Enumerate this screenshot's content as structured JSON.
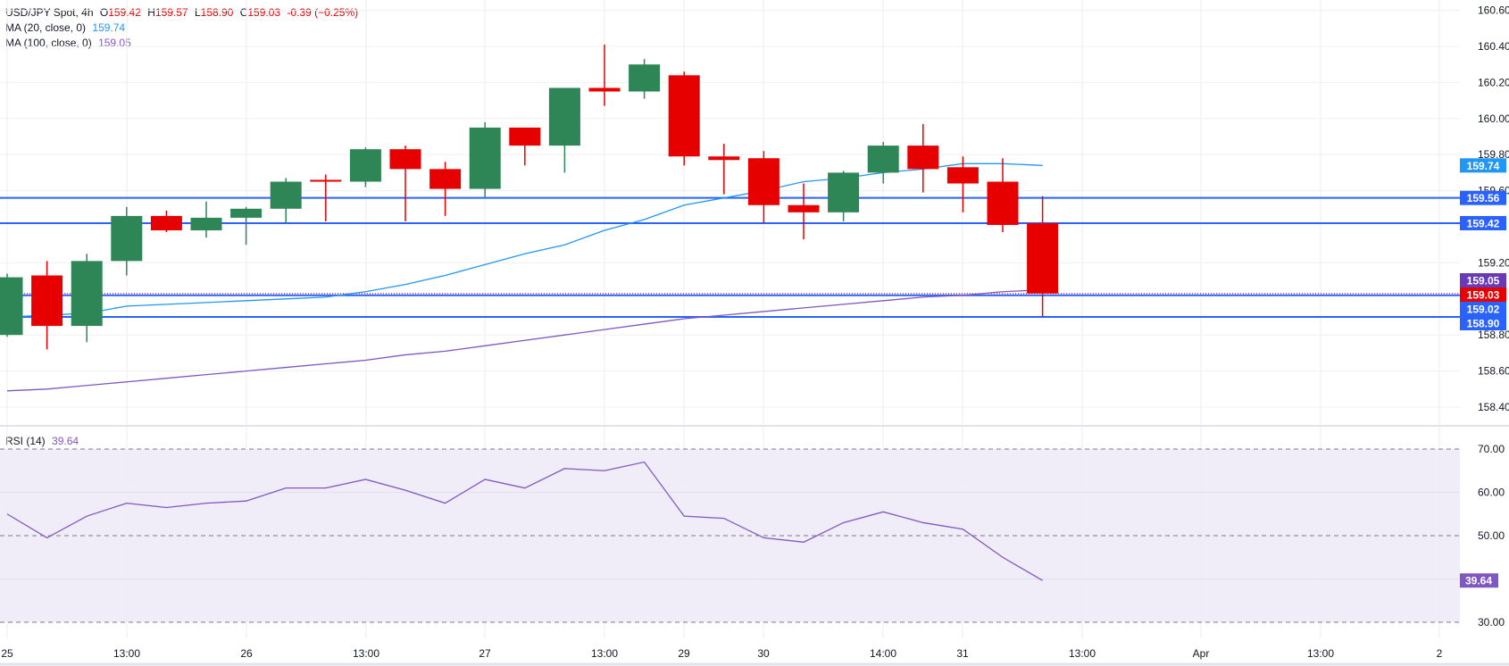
{
  "header": {
    "symbol": "USD/JPY Spot, 4h",
    "open_label": "O",
    "open": "159.42",
    "high_label": "H",
    "high": "159.57",
    "low_label": "L",
    "low": "158.90",
    "close_label": "C",
    "close": "159.03",
    "change": "-0.39 (−0.25%)"
  },
  "indicators": {
    "ma20": {
      "label": "MA (20, close, 0)",
      "value": "159.74",
      "color": "#2196f3"
    },
    "ma100": {
      "label": "MA (100, close, 0)",
      "value": "159.05",
      "color": "#7e57c2"
    },
    "rsi": {
      "label": "RSI (14)",
      "value": "39.64",
      "color": "#7e57c2"
    }
  },
  "colors": {
    "up": "#2e8555",
    "down": "#e60000",
    "level_line": "#2962ff",
    "rsi_band": "#f0ecf8"
  },
  "chart_data": [
    {
      "type": "candlestick",
      "title": "USD/JPY Spot, 4h",
      "ylim": [
        158.4,
        160.6
      ],
      "y_ticks": [
        "160.60",
        "160.40",
        "160.20",
        "160.00",
        "159.80",
        "159.60",
        "159.20",
        "158.80",
        "158.60",
        "158.40"
      ],
      "x_ticks": [
        "25",
        "13:00",
        "26",
        "13:00",
        "27",
        "13:00",
        "29",
        "30",
        "14:00",
        "31",
        "13:00",
        "Apr",
        "13:00",
        "2"
      ],
      "grid": true,
      "candles": [
        {
          "o": 158.8,
          "h": 159.14,
          "l": 158.79,
          "c": 159.12
        },
        {
          "o": 159.13,
          "h": 159.21,
          "l": 158.72,
          "c": 158.85
        },
        {
          "o": 158.85,
          "h": 159.25,
          "l": 158.76,
          "c": 159.21
        },
        {
          "o": 159.21,
          "h": 159.51,
          "l": 159.13,
          "c": 159.46
        },
        {
          "o": 159.46,
          "h": 159.49,
          "l": 159.37,
          "c": 159.38
        },
        {
          "o": 159.38,
          "h": 159.54,
          "l": 159.34,
          "c": 159.45
        },
        {
          "o": 159.45,
          "h": 159.51,
          "l": 159.3,
          "c": 159.5
        },
        {
          "o": 159.5,
          "h": 159.67,
          "l": 159.42,
          "c": 159.65
        },
        {
          "o": 159.66,
          "h": 159.69,
          "l": 159.43,
          "c": 159.65
        },
        {
          "o": 159.65,
          "h": 159.84,
          "l": 159.62,
          "c": 159.83
        },
        {
          "o": 159.83,
          "h": 159.85,
          "l": 159.43,
          "c": 159.72
        },
        {
          "o": 159.72,
          "h": 159.76,
          "l": 159.46,
          "c": 159.61
        },
        {
          "o": 159.61,
          "h": 159.98,
          "l": 159.56,
          "c": 159.95
        },
        {
          "o": 159.95,
          "h": 159.95,
          "l": 159.74,
          "c": 159.85
        },
        {
          "o": 159.85,
          "h": 160.17,
          "l": 159.7,
          "c": 160.17
        },
        {
          "o": 160.17,
          "h": 160.41,
          "l": 160.07,
          "c": 160.15
        },
        {
          "o": 160.15,
          "h": 160.33,
          "l": 160.11,
          "c": 160.3
        },
        {
          "o": 160.24,
          "h": 160.26,
          "l": 159.74,
          "c": 159.79
        },
        {
          "o": 159.79,
          "h": 159.86,
          "l": 159.58,
          "c": 159.77
        },
        {
          "o": 159.78,
          "h": 159.82,
          "l": 159.42,
          "c": 159.52
        },
        {
          "o": 159.52,
          "h": 159.64,
          "l": 159.33,
          "c": 159.48
        },
        {
          "o": 159.48,
          "h": 159.71,
          "l": 159.43,
          "c": 159.7
        },
        {
          "o": 159.7,
          "h": 159.87,
          "l": 159.64,
          "c": 159.85
        },
        {
          "o": 159.85,
          "h": 159.97,
          "l": 159.59,
          "c": 159.72
        },
        {
          "o": 159.73,
          "h": 159.79,
          "l": 159.48,
          "c": 159.64
        },
        {
          "o": 159.65,
          "h": 159.78,
          "l": 159.37,
          "c": 159.41
        },
        {
          "o": 159.42,
          "h": 159.57,
          "l": 158.9,
          "c": 159.03
        }
      ],
      "series": [
        {
          "name": "MA (20, close, 0)",
          "values": [
            158.9,
            158.91,
            158.92,
            158.96,
            158.97,
            158.98,
            158.99,
            159.0,
            159.01,
            159.04,
            159.08,
            159.13,
            159.19,
            159.25,
            159.3,
            159.38,
            159.44,
            159.52,
            159.56,
            159.6,
            159.65,
            159.67,
            159.7,
            159.72,
            159.75,
            159.75,
            159.74
          ]
        },
        {
          "name": "MA (100, close, 0)",
          "values": [
            158.49,
            158.5,
            158.52,
            158.54,
            158.56,
            158.58,
            158.6,
            158.62,
            158.64,
            158.66,
            158.69,
            158.71,
            158.74,
            158.77,
            158.8,
            158.83,
            158.86,
            158.89,
            158.91,
            158.93,
            158.95,
            158.97,
            158.99,
            159.01,
            159.02,
            159.04,
            159.05
          ]
        }
      ],
      "horizontal_levels": [
        159.56,
        159.42,
        159.02,
        158.9
      ],
      "price_tags": [
        {
          "value": "159.74",
          "color": "#2196f3"
        },
        {
          "value": "159.56",
          "color": "#2962ff"
        },
        {
          "value": "159.42",
          "color": "#2962ff"
        },
        {
          "value": "159.05",
          "color": "#673ab7"
        },
        {
          "value": "159.03",
          "color": "#e60000"
        },
        {
          "value": "159.02",
          "color": "#2962ff"
        },
        {
          "value": "158.90",
          "color": "#2962ff"
        }
      ]
    },
    {
      "type": "line",
      "title": "RSI (14)",
      "ylim": [
        30,
        70
      ],
      "y_ticks": [
        "70.00",
        "60.00",
        "50.00",
        "30.00"
      ],
      "bands": [
        30,
        50,
        70
      ],
      "series": [
        {
          "name": "RSI (14)",
          "values": [
            55,
            49.5,
            54.5,
            57.5,
            56.5,
            57.5,
            58,
            61,
            61,
            63,
            60.5,
            57.5,
            63,
            61,
            65.5,
            65,
            67,
            54.5,
            54,
            49.5,
            48.5,
            53,
            55.5,
            53,
            51.5,
            45,
            39.64
          ]
        }
      ],
      "last_tag": "39.64"
    }
  ]
}
